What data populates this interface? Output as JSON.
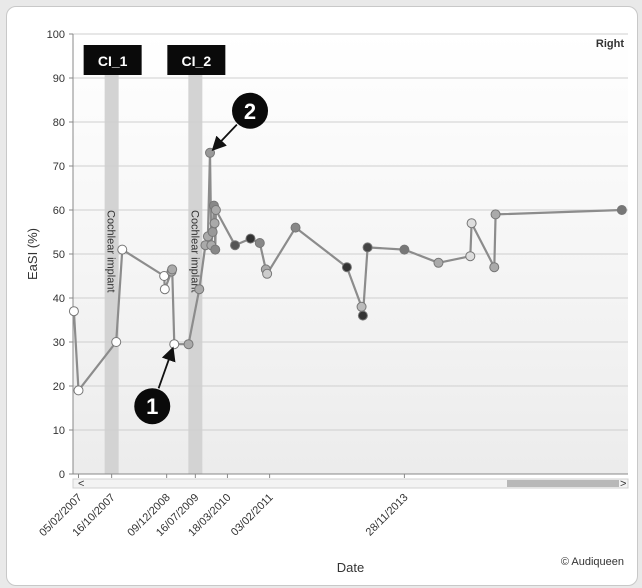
{
  "chart_data": {
    "type": "line",
    "title": "",
    "corner_label": "Right",
    "xlabel": "Date",
    "ylabel": "EaSI (%)",
    "ylim": [
      0,
      100
    ],
    "yticks": [
      "0",
      "10",
      "20",
      "30",
      "40",
      "50",
      "60",
      "70",
      "80",
      "90",
      "100"
    ],
    "grid": true,
    "x_tick_labels": [
      "05/02/2007",
      "16/10/2007",
      "09/12/2008",
      "16/07/2009",
      "18/03/2010",
      "03/02/2011",
      "28/11/2013"
    ],
    "implant_bands": [
      {
        "date": "16/10/2007",
        "label": "Cochlear implant",
        "tag": "CI_1"
      },
      {
        "date": "16/07/2009",
        "label": "Cochlear implant",
        "tag": "CI_2"
      }
    ],
    "series": [
      {
        "color": "#8c8c8c",
        "points": [
          {
            "x": "2007-01-01",
            "y": 37,
            "fill": "#ffffff"
          },
          {
            "x": "2007-02-05",
            "y": 19,
            "fill": "#ffffff"
          },
          {
            "x": "2007-11-20",
            "y": 30,
            "fill": "#ffffff"
          },
          {
            "x": "2008-01-05",
            "y": 51,
            "fill": "#ffffff"
          },
          {
            "x": "2008-11-20",
            "y": 45,
            "fill": "#ffffff"
          },
          {
            "x": "2008-11-25",
            "y": 42,
            "fill": "#ffffff"
          },
          {
            "x": "2009-01-15",
            "y": 46,
            "fill": "#aaaaaa"
          },
          {
            "x": "2009-01-20",
            "y": 46.5,
            "fill": "#aaaaaa"
          },
          {
            "x": "2009-02-05",
            "y": 29.5,
            "fill": "#ffffff"
          },
          {
            "x": "2009-05-25",
            "y": 29.5,
            "fill": "#aaaaaa"
          },
          {
            "x": "2009-08-15",
            "y": 42,
            "fill": "#aaaaaa"
          },
          {
            "x": "2009-10-01",
            "y": 52,
            "fill": "#aaaaaa"
          },
          {
            "x": "2009-10-20",
            "y": 54,
            "fill": "#aaaaaa"
          },
          {
            "x": "2009-11-05",
            "y": 73,
            "fill": "#999999"
          },
          {
            "x": "2009-11-15",
            "y": 52,
            "fill": "#aaaaaa"
          },
          {
            "x": "2009-11-25",
            "y": 55,
            "fill": "#999999"
          },
          {
            "x": "2009-12-05",
            "y": 61,
            "fill": "#888888"
          },
          {
            "x": "2009-12-10",
            "y": 57,
            "fill": "#aaaaaa"
          },
          {
            "x": "2009-12-15",
            "y": 51,
            "fill": "#888888"
          },
          {
            "x": "2009-12-20",
            "y": 60,
            "fill": "#aaaaaa"
          },
          {
            "x": "2010-05-15",
            "y": 52,
            "fill": "#555555"
          },
          {
            "x": "2010-09-10",
            "y": 53.5,
            "fill": "#333333"
          },
          {
            "x": "2010-11-20",
            "y": 52.5,
            "fill": "#888888"
          },
          {
            "x": "2011-01-05",
            "y": 46.5,
            "fill": "#aaaaaa"
          },
          {
            "x": "2011-01-15",
            "y": 45.5,
            "fill": "#cccccc"
          },
          {
            "x": "2011-08-20",
            "y": 56,
            "fill": "#888888"
          },
          {
            "x": "2012-09-15",
            "y": 47,
            "fill": "#333333"
          },
          {
            "x": "2013-01-05",
            "y": 38,
            "fill": "#bbbbbb"
          },
          {
            "x": "2013-01-15",
            "y": 36,
            "fill": "#333333"
          },
          {
            "x": "2013-02-20",
            "y": 51.5,
            "fill": "#444444"
          },
          {
            "x": "2013-11-28",
            "y": 51,
            "fill": "#777777"
          },
          {
            "x": "2014-08-15",
            "y": 48,
            "fill": "#aaaaaa"
          },
          {
            "x": "2015-04-15",
            "y": 49.5,
            "fill": "#dddddd"
          },
          {
            "x": "2015-04-25",
            "y": 57,
            "fill": "#dddddd"
          },
          {
            "x": "2015-10-15",
            "y": 47,
            "fill": "#aaaaaa"
          },
          {
            "x": "2015-10-25",
            "y": 59,
            "fill": "#aaaaaa"
          },
          {
            "x": "2018-06-15",
            "y": 60,
            "fill": "#777777"
          }
        ]
      }
    ],
    "callouts": [
      {
        "label": "1",
        "x": "2009-02-05",
        "y": 29.5
      },
      {
        "label": "2",
        "x": "2009-11-05",
        "y": 73
      }
    ],
    "brand": "© Audiqueen"
  }
}
